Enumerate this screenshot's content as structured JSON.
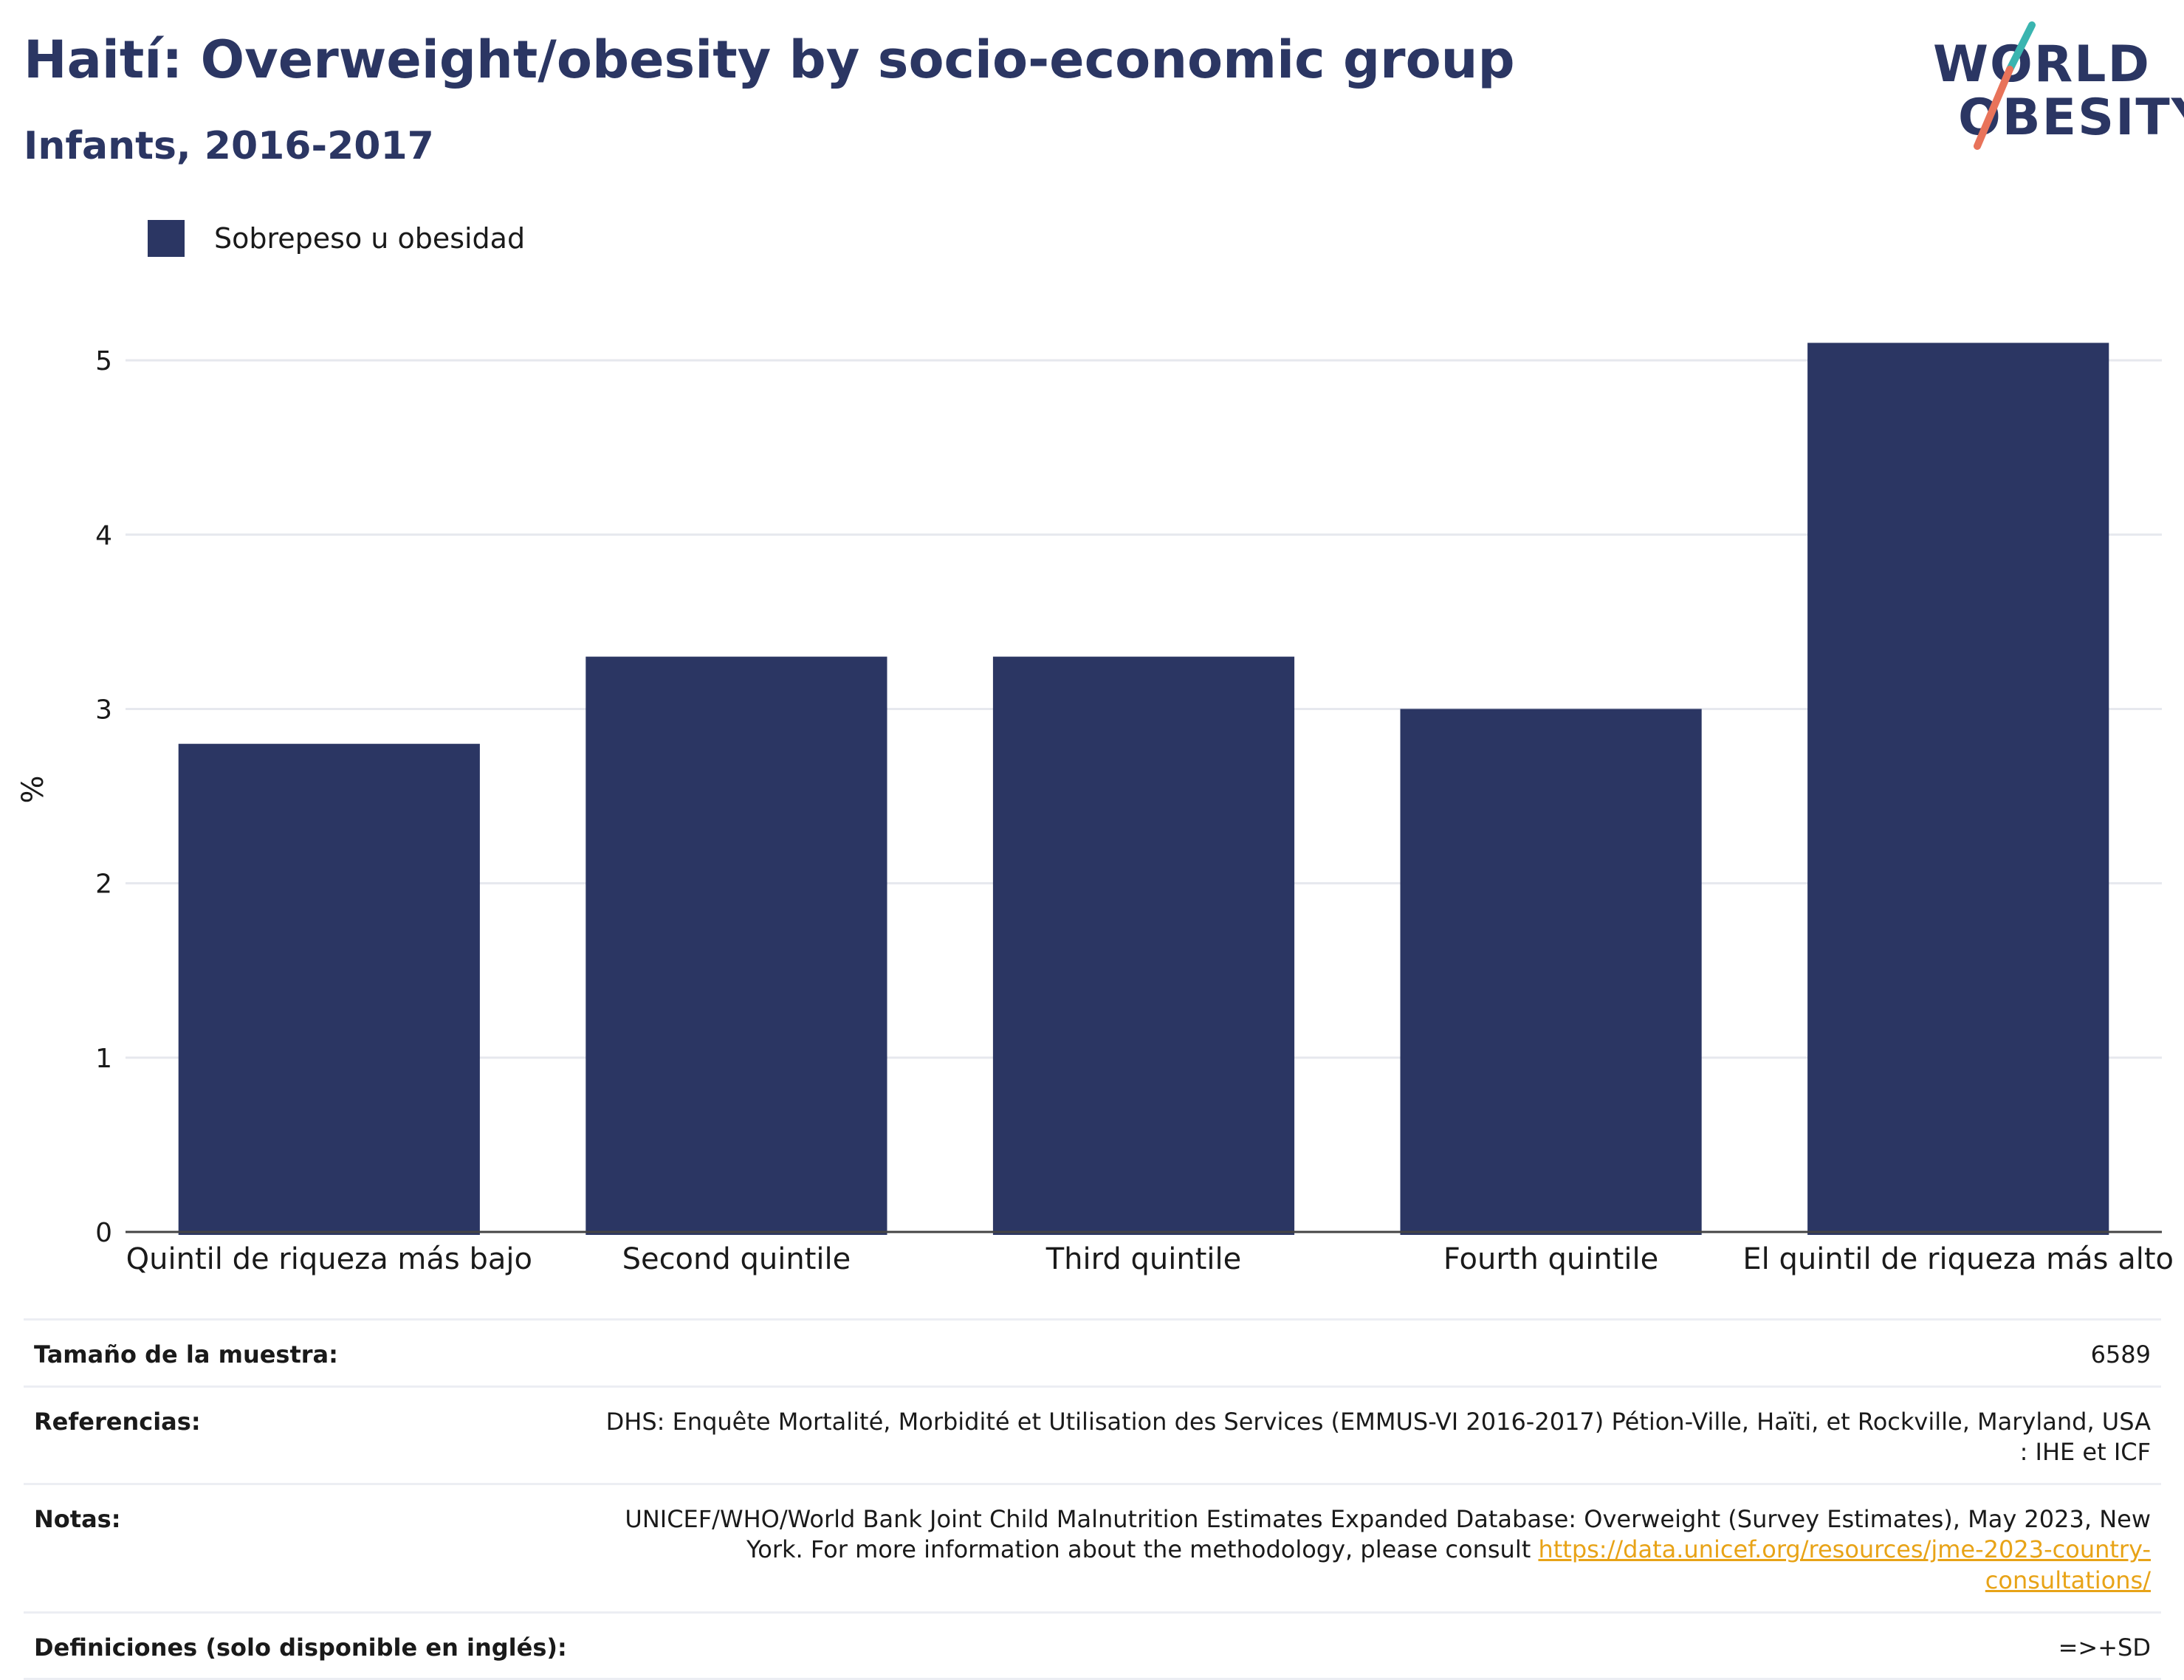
{
  "header": {
    "title": "Haití: Overweight/obesity by socio-economic group",
    "subtitle": "Infants, 2016-2017"
  },
  "logo": {
    "line1": "WORLD",
    "line2": "OBESITY",
    "colors": {
      "text": "#2b3663",
      "slash_top": "#3ab5b0",
      "slash_bottom": "#e8735a"
    }
  },
  "legend": {
    "items": [
      {
        "label": "Sobrepeso u obesidad",
        "color": "#2b3663"
      }
    ]
  },
  "chart_data": {
    "type": "bar",
    "categories": [
      "Quintil de riqueza más bajo",
      "Second quintile",
      "Third quintile",
      "Fourth quintile",
      "El quintil de riqueza más alto"
    ],
    "series": [
      {
        "name": "Sobrepeso u obesidad",
        "values": [
          2.8,
          3.3,
          3.3,
          3.0,
          5.1
        ],
        "color": "#2b3663"
      }
    ],
    "ylabel": "%",
    "ylim": [
      0,
      5.5
    ],
    "yticks": [
      0,
      1,
      2,
      3,
      4,
      5
    ],
    "grid": true,
    "legend_position": "top-left"
  },
  "info": {
    "sample_size": {
      "label": "Tamaño de la muestra:",
      "value": "6589"
    },
    "references": {
      "label": "Referencias:",
      "value": "DHS: Enquête Mortalité, Morbidité et Utilisation des Services (EMMUS-VI 2016-2017) Pétion-Ville, Haïti, et Rockville, Maryland, USA : IHE et ICF"
    },
    "notes": {
      "label": "Notas:",
      "text": "UNICEF/WHO/World Bank Joint Child Malnutrition Estimates Expanded Database: Overweight (Survey Estimates), May 2023, New York. For more information about the methodology, please consult ",
      "link": "https://data.unicef.org/resources/jme-2023-country-consultations/"
    },
    "definitions": {
      "label": "Definiciones (solo disponible en inglés):",
      "value": "=>+SD"
    }
  }
}
